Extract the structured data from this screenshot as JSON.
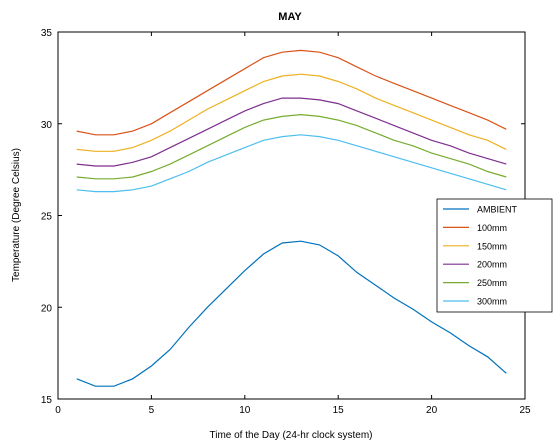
{
  "chart_data": {
    "type": "line",
    "title": "MAY",
    "xlabel": "Time of the Day (24-hr clock system)",
    "ylabel": "Temperature (Degree Celsius)",
    "xlim": [
      0,
      25
    ],
    "ylim": [
      15,
      35
    ],
    "xticks": [
      0,
      5,
      10,
      15,
      20,
      25
    ],
    "yticks": [
      15,
      20,
      25,
      30,
      35
    ],
    "grid": false,
    "legend_position": "right",
    "x": [
      1,
      2,
      3,
      4,
      5,
      6,
      7,
      8,
      9,
      10,
      11,
      12,
      13,
      14,
      15,
      16,
      17,
      18,
      19,
      20,
      21,
      22,
      23,
      24
    ],
    "series": [
      {
        "name": "AMBIENT",
        "color": "#0072BD",
        "values": [
          16.1,
          15.7,
          15.7,
          16.1,
          16.8,
          17.7,
          18.9,
          20.0,
          21.0,
          22.0,
          22.9,
          23.5,
          23.6,
          23.4,
          22.8,
          21.9,
          21.2,
          20.5,
          19.9,
          19.2,
          18.6,
          17.9,
          17.3,
          16.4
        ]
      },
      {
        "name": "100mm",
        "color": "#D95319",
        "values": [
          29.6,
          29.4,
          29.4,
          29.6,
          30.0,
          30.6,
          31.2,
          31.8,
          32.4,
          33.0,
          33.6,
          33.9,
          34.0,
          33.9,
          33.6,
          33.1,
          32.6,
          32.2,
          31.8,
          31.4,
          31.0,
          30.6,
          30.2,
          29.7
        ]
      },
      {
        "name": "150mm",
        "color": "#EDB120",
        "values": [
          28.6,
          28.5,
          28.5,
          28.7,
          29.1,
          29.6,
          30.2,
          30.8,
          31.3,
          31.8,
          32.3,
          32.6,
          32.7,
          32.6,
          32.3,
          31.9,
          31.4,
          31.0,
          30.6,
          30.2,
          29.8,
          29.4,
          29.1,
          28.6
        ]
      },
      {
        "name": "200mm",
        "color": "#7E2F8E",
        "values": [
          27.8,
          27.7,
          27.7,
          27.9,
          28.2,
          28.7,
          29.2,
          29.7,
          30.2,
          30.7,
          31.1,
          31.4,
          31.4,
          31.3,
          31.1,
          30.7,
          30.3,
          29.9,
          29.5,
          29.1,
          28.8,
          28.4,
          28.1,
          27.8
        ]
      },
      {
        "name": "250mm",
        "color": "#77AC30",
        "values": [
          27.1,
          27.0,
          27.0,
          27.1,
          27.4,
          27.8,
          28.3,
          28.8,
          29.3,
          29.8,
          30.2,
          30.4,
          30.5,
          30.4,
          30.2,
          29.9,
          29.5,
          29.1,
          28.8,
          28.4,
          28.1,
          27.8,
          27.4,
          27.1
        ]
      },
      {
        "name": "300mm",
        "color": "#4DBEEE",
        "values": [
          26.4,
          26.3,
          26.3,
          26.4,
          26.6,
          27.0,
          27.4,
          27.9,
          28.3,
          28.7,
          29.1,
          29.3,
          29.4,
          29.3,
          29.1,
          28.8,
          28.5,
          28.2,
          27.9,
          27.6,
          27.3,
          27.0,
          26.7,
          26.4
        ]
      }
    ]
  }
}
